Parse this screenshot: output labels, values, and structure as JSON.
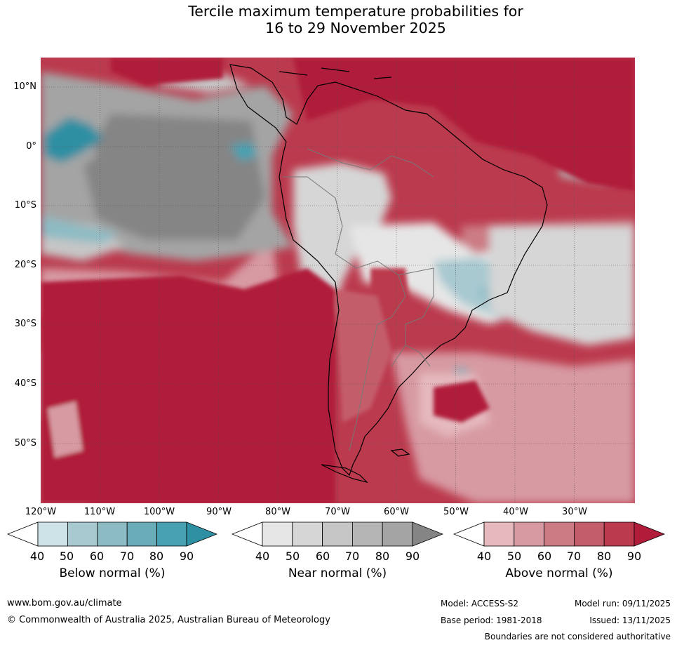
{
  "title": {
    "line1": "Tercile maximum temperature probabilities for",
    "line2": "16 to 29 November 2025"
  },
  "map": {
    "lat_labels": [
      "10°N",
      "0°",
      "10°S",
      "20°S",
      "30°S",
      "40°S",
      "50°S"
    ],
    "lon_labels": [
      "120°W",
      "110°W",
      "100°W",
      "90°W",
      "80°W",
      "70°W",
      "60°W",
      "50°W",
      "40°W",
      "30°W"
    ]
  },
  "colorbars": {
    "below": {
      "title": "Below normal (%)",
      "ticks": [
        "40",
        "50",
        "60",
        "70",
        "80",
        "90"
      ],
      "colors": [
        "#cde3e8",
        "#a8c9d0",
        "#8dbbc4",
        "#6aacb8",
        "#47a1b2",
        "#2f8fa3"
      ]
    },
    "near": {
      "title": "Near normal (%)",
      "ticks": [
        "40",
        "50",
        "60",
        "70",
        "80",
        "90"
      ],
      "colors": [
        "#e6e6e6",
        "#d6d6d6",
        "#c6c6c6",
        "#b5b5b5",
        "#a4a4a4",
        "#858585"
      ]
    },
    "above": {
      "title": "Above normal (%)",
      "ticks": [
        "40",
        "50",
        "60",
        "70",
        "80",
        "90"
      ],
      "colors": [
        "#e5b9be",
        "#d79aa2",
        "#cc7b85",
        "#c45d6b",
        "#bb3a4d",
        "#b01c3a"
      ]
    }
  },
  "footer": {
    "website": "www.bom.gov.au/climate",
    "copyright": "© Commonwealth of Australia 2025, Australian Bureau of Meteorology",
    "model": "Model: ACCESS-S2",
    "base_period": "Base period: 1981-2018",
    "model_run": "Model run: 09/11/2025",
    "issued": "Issued: 13/11/2025",
    "disclaimer": "Boundaries are not considered authoritative"
  }
}
